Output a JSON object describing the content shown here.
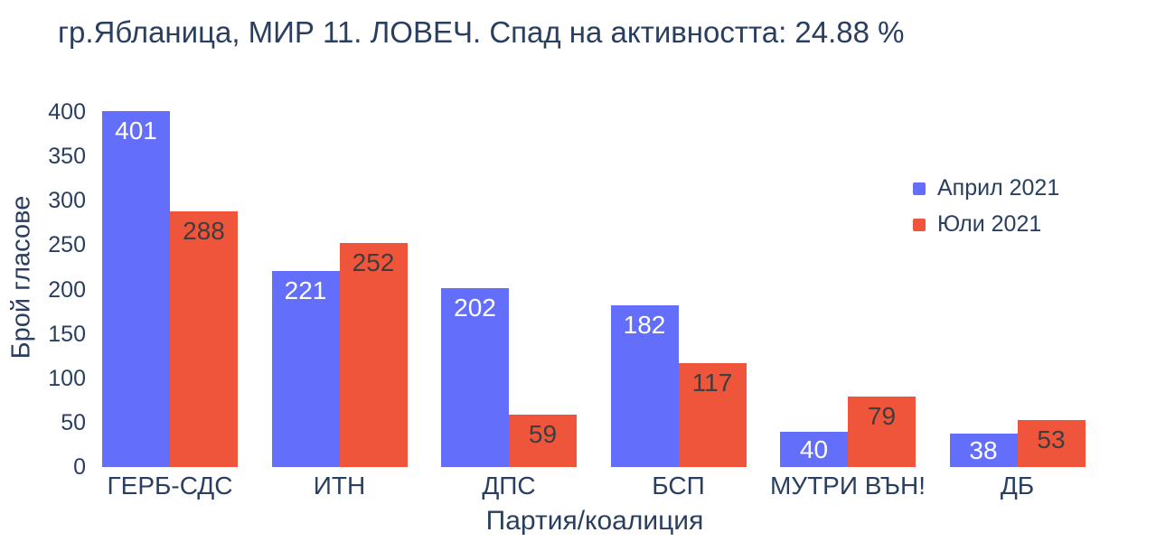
{
  "title": "гр.Ябланица, МИР 11. ЛОВЕЧ. Спад на активността: 24.88 %",
  "colors": {
    "april_blue": "#636EFA",
    "july_red": "#EF553B",
    "text": "#2A3F5F",
    "background": "#FFFFFF"
  },
  "chart_data": {
    "type": "bar",
    "title": "гр.Ябланица, МИР 11. ЛОВЕЧ. Спад на активността: 24.88 %",
    "categories": [
      "ГЕРБ-СДС",
      "ИТН",
      "ДПС",
      "БСП",
      "МУТРИ ВЪН!",
      "ДБ"
    ],
    "series": [
      {
        "name": "Април 2021",
        "key": "april-2021",
        "color": "#636EFA",
        "label_color": "#FFFFFF",
        "values": [
          401,
          221,
          202,
          182,
          40,
          38
        ]
      },
      {
        "name": "Юли 2021",
        "key": "july-2021",
        "color": "#EF553B",
        "label_color": "#3E3E3E",
        "values": [
          288,
          252,
          59,
          117,
          79,
          53
        ]
      }
    ],
    "xlabel": "Партия/коалиция",
    "ylabel": "Брой гласове",
    "ylim": [
      0,
      400
    ],
    "yticks": [
      0,
      50,
      100,
      150,
      200,
      250,
      300,
      350,
      400
    ],
    "grid": false,
    "legend_position": "right-inside",
    "value_labels": "inside-top"
  }
}
